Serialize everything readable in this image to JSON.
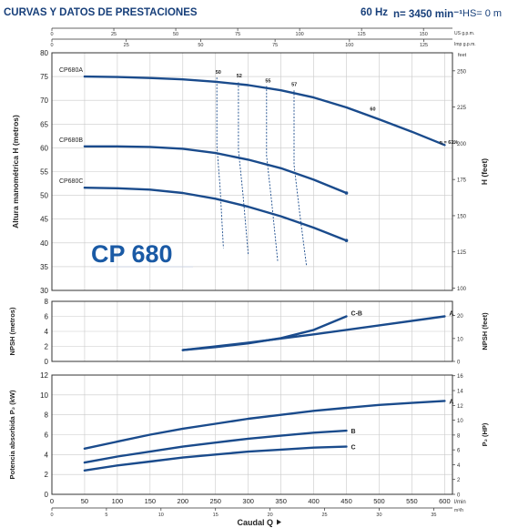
{
  "header": {
    "title": "CURVAS Y DATOS DE PRESTACIONES",
    "frequency": "60 Hz",
    "speed": "n= 3450 min⁻¹",
    "hs": "HS= 0 m"
  },
  "brand_label": "CP 680",
  "colors": {
    "curve": "#1a4b8c",
    "title": "#173f7a",
    "grid": "#c9c9c9",
    "frame": "#333333"
  },
  "top_axes": {
    "us_gpm": {
      "label": "US g.p.m.",
      "ticks": [
        0,
        25,
        50,
        75,
        100,
        125,
        150
      ]
    },
    "imp_gpm": {
      "label": "Imp g.p.m.",
      "ticks": [
        0,
        25,
        50,
        75,
        100,
        125
      ]
    }
  },
  "bottom_axes": {
    "l_min": {
      "label": "l/min",
      "ticks": [
        0,
        50,
        100,
        150,
        200,
        250,
        300,
        350,
        400,
        450,
        500,
        550,
        600
      ]
    },
    "m3_h": {
      "label": "m³/h",
      "ticks": [
        0,
        5,
        10,
        15,
        20,
        25,
        30,
        35
      ]
    },
    "xlabel": "Caudal Q"
  },
  "chart_data": [
    {
      "type": "line",
      "panel": "head",
      "ylabel": "Altura manométrica H (metros)",
      "ylabel_right": "H (feet)",
      "ylim": [
        30,
        80
      ],
      "y_ticks": [
        30,
        35,
        40,
        45,
        50,
        55,
        60,
        65,
        70,
        75,
        80
      ],
      "y_right_ticks": [
        100,
        125,
        150,
        175,
        200,
        225,
        250
      ],
      "y_right_unit_label": "feet",
      "xlim": [
        0,
        612
      ],
      "series": [
        {
          "name": "CP680A",
          "x": [
            50,
            100,
            150,
            200,
            250,
            300,
            350,
            400,
            450,
            500,
            550,
            600
          ],
          "y": [
            75,
            74.9,
            74.7,
            74.4,
            73.9,
            73.2,
            72.1,
            70.6,
            68.5,
            66,
            63.4,
            60.6
          ]
        },
        {
          "name": "CP680B",
          "x": [
            50,
            100,
            150,
            200,
            250,
            300,
            350,
            400,
            450
          ],
          "y": [
            60.3,
            60.3,
            60.2,
            59.8,
            58.9,
            57.5,
            55.7,
            53.3,
            50.5
          ]
        },
        {
          "name": "CP680C",
          "x": [
            50,
            100,
            150,
            200,
            250,
            300,
            350,
            400,
            450
          ],
          "y": [
            51.6,
            51.5,
            51.2,
            50.5,
            49.3,
            47.6,
            45.6,
            43.2,
            40.5
          ]
        }
      ],
      "efficiency_labels": [
        "50",
        "52",
        "55",
        "57",
        "60",
        "η = 63%"
      ],
      "efficiency_lines": [
        {
          "x": [
            252,
            252,
            257,
            262
          ],
          "y": [
            74.8,
            60.5,
            51.5,
            38.9
          ]
        },
        {
          "x": [
            285,
            285,
            292,
            300
          ],
          "y": [
            73.8,
            59.6,
            50.2,
            37.5
          ]
        },
        {
          "x": [
            328,
            328,
            336,
            345
          ],
          "y": [
            73,
            58.3,
            48.3,
            36.2
          ]
        },
        {
          "x": [
            370,
            370,
            379,
            389
          ],
          "y": [
            72.1,
            56.4,
            45.8,
            35.1
          ]
        }
      ],
      "efficiency_label_points": [
        {
          "x": 250,
          "y": 75.6
        },
        {
          "x": 282,
          "y": 74.8
        },
        {
          "x": 326,
          "y": 73.8
        },
        {
          "x": 366,
          "y": 73.0
        },
        {
          "x": 486,
          "y": 67.8
        },
        {
          "x": 592,
          "y": 60.8
        }
      ]
    },
    {
      "type": "line",
      "panel": "npsh",
      "ylabel": "NPSH (metros)",
      "ylabel_right": "NPSH (feet)",
      "ylim": [
        0,
        8
      ],
      "y_ticks": [
        0,
        2,
        4,
        6,
        8
      ],
      "y_right_ticks": [
        0,
        10,
        20
      ],
      "xlim": [
        0,
        612
      ],
      "series": [
        {
          "name": "C-B",
          "x": [
            200,
            250,
            300,
            350,
            400,
            450
          ],
          "y": [
            1.5,
            1.9,
            2.4,
            3.1,
            4.2,
            6
          ]
        },
        {
          "name": "A",
          "x": [
            200,
            300,
            400,
            500,
            600
          ],
          "y": [
            1.5,
            2.5,
            3.6,
            4.8,
            6
          ]
        }
      ]
    },
    {
      "type": "line",
      "panel": "power",
      "ylabel": "Potencia absorbida P₂ (kW)",
      "ylabel_right": "P₂ (HP)",
      "ylim": [
        0,
        12
      ],
      "y_ticks": [
        0,
        2,
        4,
        6,
        8,
        10,
        12
      ],
      "y_right_ticks": [
        0,
        2,
        4,
        6,
        8,
        10,
        12,
        14,
        16
      ],
      "xlim": [
        0,
        612
      ],
      "series": [
        {
          "name": "A",
          "x": [
            50,
            100,
            150,
            200,
            250,
            300,
            350,
            400,
            450,
            500,
            550,
            600
          ],
          "y": [
            4.6,
            5.3,
            6,
            6.6,
            7.1,
            7.6,
            8,
            8.4,
            8.7,
            9,
            9.2,
            9.4
          ]
        },
        {
          "name": "B",
          "x": [
            50,
            100,
            150,
            200,
            250,
            300,
            350,
            400,
            450
          ],
          "y": [
            3.2,
            3.8,
            4.3,
            4.8,
            5.2,
            5.6,
            5.9,
            6.2,
            6.4
          ]
        },
        {
          "name": "C",
          "x": [
            50,
            100,
            150,
            200,
            250,
            300,
            350,
            400,
            450
          ],
          "y": [
            2.4,
            2.9,
            3.3,
            3.7,
            4,
            4.3,
            4.5,
            4.7,
            4.8
          ]
        }
      ]
    }
  ]
}
